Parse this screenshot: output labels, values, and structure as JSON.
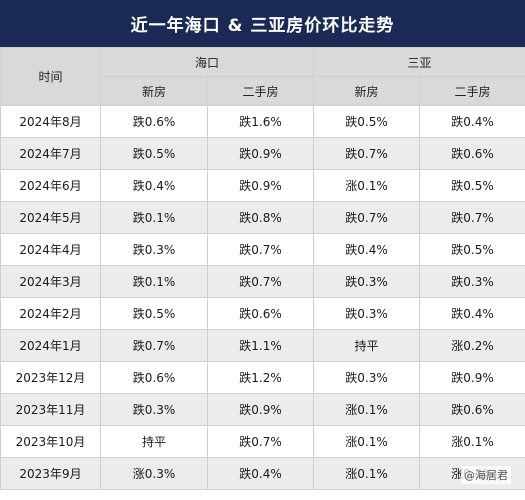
{
  "title": "近一年海口 & 三亚房价环比走势",
  "headers": {
    "time": "时间",
    "city1": "海口",
    "city2": "三亚",
    "sub": [
      "新房",
      "二手房",
      "新房",
      "二手房"
    ]
  },
  "rows": [
    [
      "2024年8月",
      "跌0.6%",
      "跌1.6%",
      "跌0.5%",
      "跌0.4%"
    ],
    [
      "2024年7月",
      "跌0.5%",
      "跌0.9%",
      "跌0.7%",
      "跌0.6%"
    ],
    [
      "2024年6月",
      "跌0.4%",
      "跌0.9%",
      "涨0.1%",
      "跌0.5%"
    ],
    [
      "2024年5月",
      "跌0.1%",
      "跌0.8%",
      "跌0.7%",
      "跌0.7%"
    ],
    [
      "2024年4月",
      "跌0.3%",
      "跌0.7%",
      "跌0.4%",
      "跌0.5%"
    ],
    [
      "2024年3月",
      "跌0.1%",
      "跌0.7%",
      "跌0.3%",
      "跌0.3%"
    ],
    [
      "2024年2月",
      "跌0.5%",
      "跌0.6%",
      "跌0.3%",
      "跌0.4%"
    ],
    [
      "2024年1月",
      "跌0.7%",
      "跌1.1%",
      "持平",
      "涨0.2%"
    ],
    [
      "2023年12月",
      "跌0.6%",
      "跌1.2%",
      "跌0.3%",
      "跌0.9%"
    ],
    [
      "2023年11月",
      "跌0.3%",
      "跌0.9%",
      "涨0.1%",
      "跌0.6%"
    ],
    [
      "2023年10月",
      "持平",
      "跌0.7%",
      "涨0.1%",
      "涨0.1%"
    ],
    [
      "2023年9月",
      "涨0.3%",
      "跌0.4%",
      "涨0.1%",
      "涨0.1%"
    ]
  ],
  "credit": "@海居君"
}
